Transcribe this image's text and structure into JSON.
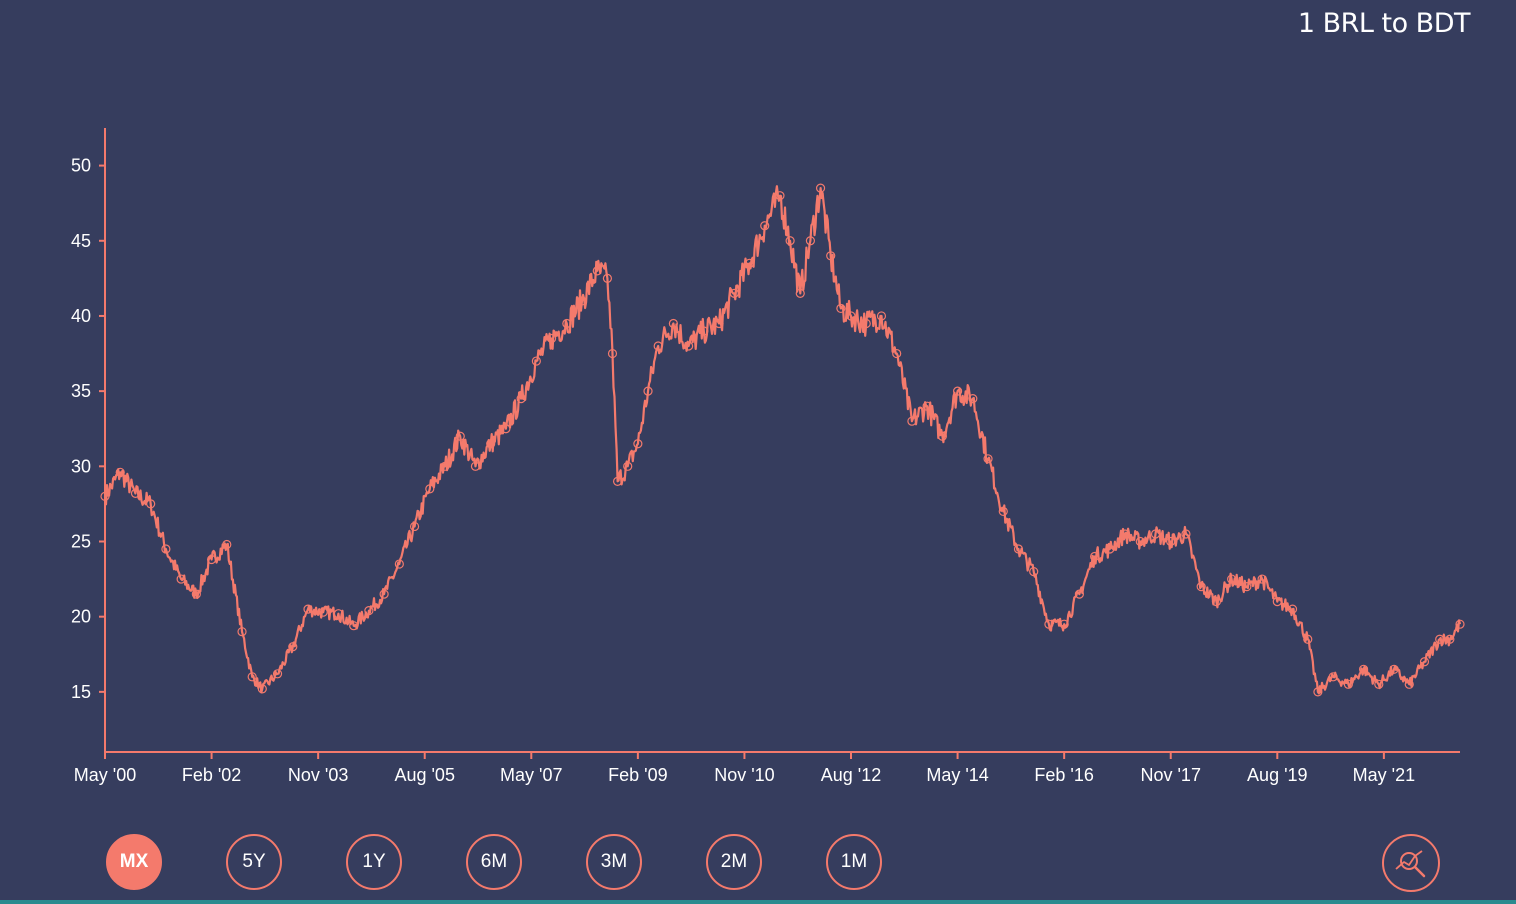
{
  "header": {
    "title": "1 BRL to BDT"
  },
  "colors": {
    "background": "#363d5e",
    "line": "#f47a6c",
    "text": "#ffffff"
  },
  "range_buttons": [
    {
      "label": "MX",
      "active": true
    },
    {
      "label": "5Y",
      "active": false
    },
    {
      "label": "1Y",
      "active": false
    },
    {
      "label": "6M",
      "active": false
    },
    {
      "label": "3M",
      "active": false
    },
    {
      "label": "2M",
      "active": false
    },
    {
      "label": "1M",
      "active": false
    }
  ],
  "zoom_button": {
    "icon": "chart-zoom-icon"
  },
  "chart_data": {
    "type": "line",
    "title": "1 BRL to BDT",
    "xlabel": "",
    "ylabel": "",
    "x_ticks": [
      "May '00",
      "Feb '02",
      "Nov '03",
      "Aug '05",
      "May '07",
      "Feb '09",
      "Nov '10",
      "Aug '12",
      "May '14",
      "Feb '16",
      "Nov '17",
      "Aug '19",
      "May '21"
    ],
    "y_ticks": [
      15,
      20,
      25,
      30,
      35,
      40,
      45,
      50
    ],
    "xlim": [
      "2000-05",
      "2022-08"
    ],
    "ylim": [
      11,
      52.5
    ],
    "grid": false,
    "legend": "none",
    "series": [
      {
        "x": [
          "2000-05",
          "2000-08",
          "2000-11",
          "2001-02",
          "2001-05",
          "2001-08",
          "2001-11",
          "2002-02",
          "2002-05",
          "2002-08",
          "2002-10",
          "2002-12",
          "2003-03",
          "2003-06",
          "2003-09",
          "2003-12",
          "2004-03",
          "2004-06",
          "2004-09",
          "2004-12",
          "2005-03",
          "2005-06",
          "2005-09",
          "2005-12",
          "2006-03",
          "2006-06",
          "2006-09",
          "2006-12",
          "2007-03",
          "2007-06",
          "2007-09",
          "2007-12",
          "2008-03",
          "2008-06",
          "2008-08",
          "2008-09",
          "2008-10",
          "2008-12",
          "2009-02",
          "2009-04",
          "2009-06",
          "2009-09",
          "2009-12",
          "2010-03",
          "2010-06",
          "2010-09",
          "2010-12",
          "2011-03",
          "2011-06",
          "2011-08",
          "2011-10",
          "2011-12",
          "2012-02",
          "2012-04",
          "2012-06",
          "2012-08",
          "2012-11",
          "2013-02",
          "2013-05",
          "2013-08",
          "2013-11",
          "2014-02",
          "2014-05",
          "2014-08",
          "2014-11",
          "2015-02",
          "2015-05",
          "2015-08",
          "2015-11",
          "2016-02",
          "2016-05",
          "2016-08",
          "2016-11",
          "2017-02",
          "2017-05",
          "2017-08",
          "2017-11",
          "2018-02",
          "2018-05",
          "2018-08",
          "2018-11",
          "2019-02",
          "2019-05",
          "2019-08",
          "2019-11",
          "2020-02",
          "2020-04",
          "2020-07",
          "2020-10",
          "2021-01",
          "2021-04",
          "2021-07",
          "2021-10",
          "2022-01",
          "2022-04",
          "2022-06",
          "2022-08"
        ],
        "y": [
          28.0,
          29.6,
          28.2,
          27.5,
          24.5,
          22.5,
          21.5,
          23.8,
          24.8,
          19.0,
          16.0,
          15.2,
          16.2,
          18.0,
          20.5,
          20.3,
          20.2,
          19.4,
          20.4,
          21.5,
          23.5,
          26.0,
          28.5,
          30.0,
          32.0,
          30.0,
          31.5,
          32.5,
          34.5,
          37.0,
          38.5,
          39.5,
          41.0,
          43.0,
          42.5,
          37.5,
          29.0,
          30.0,
          31.5,
          35.0,
          38.0,
          39.5,
          38.0,
          39.0,
          39.5,
          41.5,
          43.5,
          46.0,
          48.0,
          45.0,
          41.5,
          45.0,
          48.5,
          44.0,
          40.5,
          40.0,
          39.5,
          40.0,
          37.5,
          33.0,
          34.0,
          32.0,
          35.0,
          34.5,
          30.5,
          27.0,
          24.5,
          23.0,
          19.5,
          19.5,
          21.5,
          24.0,
          24.5,
          25.5,
          25.0,
          25.5,
          25.0,
          25.5,
          22.0,
          21.0,
          22.5,
          22.0,
          22.5,
          21.0,
          20.5,
          18.5,
          15.0,
          16.0,
          15.5,
          16.5,
          15.5,
          16.5,
          15.5,
          17.0,
          18.5,
          18.5,
          19.5
        ]
      }
    ]
  }
}
